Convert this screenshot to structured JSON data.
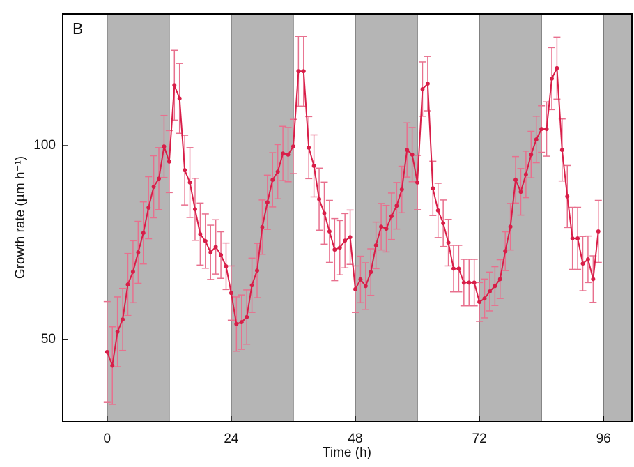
{
  "chart_data": {
    "type": "line",
    "panel_label": "B",
    "xlabel": "Time (h)",
    "ylabel": "Growth rate (µm h⁻¹)",
    "xlim": [
      -8.6,
      101.5
    ],
    "ylim": [
      28.8,
      134
    ],
    "xticks": [
      0,
      24,
      48,
      72,
      96
    ],
    "yticks": [
      50,
      100
    ],
    "shaded_periods": [
      [
        0,
        12
      ],
      [
        24,
        36
      ],
      [
        48,
        60
      ],
      [
        72,
        84
      ],
      [
        96,
        101.5
      ]
    ],
    "shade_color": "#b5b5b5",
    "x": [
      0,
      1,
      2,
      3,
      4,
      5,
      6,
      7,
      8,
      9,
      10,
      11,
      12,
      13,
      14,
      15,
      16,
      17,
      18,
      19,
      20,
      21,
      22,
      23,
      24,
      25,
      26,
      27,
      28,
      29,
      30,
      31,
      32,
      33,
      34,
      35,
      36,
      37,
      38,
      39,
      40,
      41,
      42,
      43,
      44,
      45,
      46,
      47,
      48,
      49,
      50,
      51,
      52,
      53,
      54,
      55,
      56,
      57,
      58,
      59,
      60,
      61,
      62,
      63,
      64,
      65,
      66,
      67,
      68,
      69,
      70,
      71,
      72,
      73,
      74,
      75,
      76,
      77,
      78,
      79,
      80,
      81,
      82,
      83,
      84,
      85,
      86,
      87,
      88,
      89,
      90,
      91,
      92,
      93,
      94,
      95
    ],
    "series": [
      {
        "color": "#d81e48",
        "error_color": "#e8708e",
        "values": [
          46.8,
          43.3,
          52,
          55.2,
          64.2,
          67.5,
          72.5,
          77.5,
          84,
          89.4,
          91.5,
          99.8,
          95.9,
          115.6,
          112.2,
          93.7,
          90.5,
          83.6,
          77.2,
          75.4,
          72.5,
          73.9,
          71.8,
          68.9,
          62,
          54,
          54.5,
          55.8,
          64,
          67.8,
          79,
          85.4,
          91.2,
          93.3,
          98,
          97.7,
          99.8,
          119.2,
          119.2,
          99.5,
          94.8,
          86.2,
          82.6,
          77.9,
          73.2,
          73.7,
          75.5,
          76.4,
          63,
          65.5,
          63.8,
          67.4,
          74.3,
          79.1,
          78.6,
          81.8,
          84.5,
          88.7,
          98.9,
          97.7,
          90.5,
          114.6,
          116,
          89,
          83.3,
          80,
          75,
          68.3,
          68.3,
          64.7,
          64.7,
          64.7,
          59.7,
          60.6,
          62.4,
          63.8,
          65.6,
          72.8,
          79.1,
          91.2,
          88.1,
          92.6,
          97.7,
          101.6,
          104.3,
          104.3,
          117.3,
          120,
          98.9,
          86.9,
          76.1,
          76.1,
          69.6,
          70.7,
          65.6,
          77.9
        ],
        "errors": [
          13,
          10,
          9,
          8,
          8,
          8,
          8,
          8,
          8,
          8,
          8,
          8,
          8,
          9,
          9,
          9,
          9,
          8,
          8,
          7,
          7,
          7,
          6,
          6,
          7,
          7,
          7,
          7,
          7,
          7,
          7,
          7,
          7,
          7,
          7,
          7,
          7,
          9,
          9,
          8,
          8,
          8,
          8,
          8,
          8,
          7,
          7,
          7,
          6,
          6,
          6,
          6,
          6,
          6,
          6,
          6,
          6,
          6,
          7,
          7,
          7,
          7,
          7,
          7,
          7,
          6,
          6,
          6,
          6,
          6,
          6,
          6,
          5,
          5,
          5,
          5,
          5,
          5,
          6,
          6,
          6,
          6,
          6,
          6,
          6,
          7,
          8,
          8,
          8,
          8,
          8,
          8,
          7,
          6,
          6,
          8
        ]
      }
    ]
  }
}
